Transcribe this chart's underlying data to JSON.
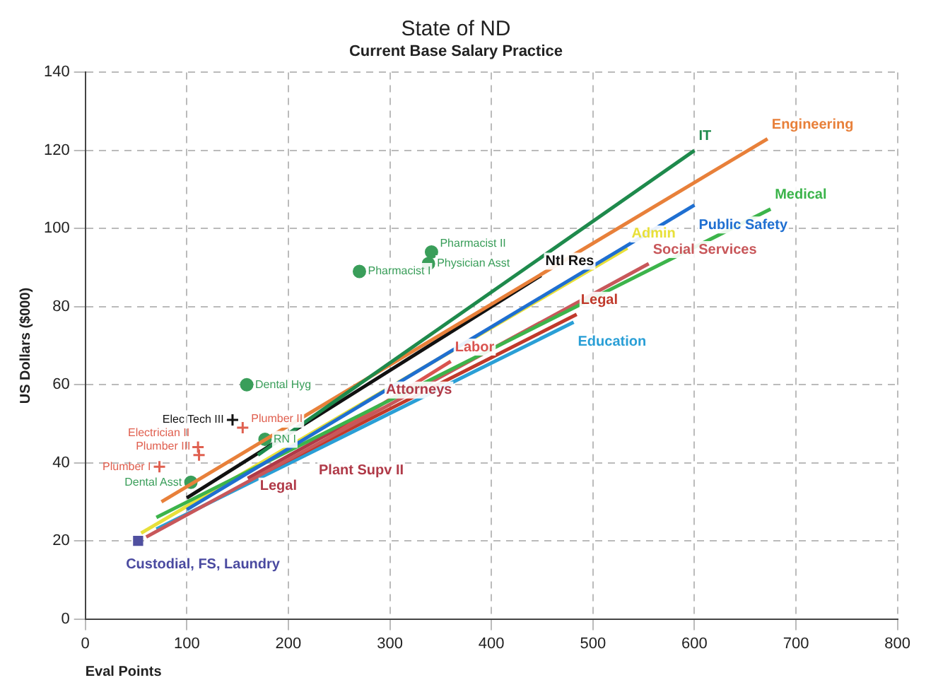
{
  "chart_data": {
    "type": "line",
    "title": "State of ND",
    "subtitle": "Current Base Salary Practice",
    "xlabel": "Eval Points",
    "ylabel": "US Dollars ($000)",
    "xlim": [
      0,
      800
    ],
    "xticks": [
      0,
      100,
      200,
      300,
      400,
      500,
      600,
      700,
      800
    ],
    "ylim": [
      0,
      140
    ],
    "yticks": [
      0,
      20,
      40,
      60,
      80,
      100,
      120,
      140
    ],
    "grid": true,
    "legend": false,
    "line_style": "solid",
    "series": [
      {
        "name": "IT",
        "color": "#1e8a4c",
        "x": [
          170,
          600
        ],
        "values": [
          42,
          120
        ]
      },
      {
        "name": "Engineering",
        "color": "#e8803a",
        "x": [
          75,
          672
        ],
        "values": [
          30,
          123
        ]
      },
      {
        "name": "Public Safety",
        "color": "#1f6fd1",
        "x": [
          100,
          600
        ],
        "values": [
          28,
          106
        ]
      },
      {
        "name": "Medical",
        "color": "#3cb44b",
        "x": [
          70,
          675
        ],
        "values": [
          26,
          105
        ]
      },
      {
        "name": "Admin",
        "color": "#e8e03a",
        "x": [
          55,
          534
        ],
        "values": [
          22,
          95
        ]
      },
      {
        "name": "Social Services",
        "color": "#c8575a",
        "x": [
          60,
          555
        ],
        "values": [
          21,
          91
        ]
      },
      {
        "name": "Ntl Res",
        "color": "#111111",
        "x": [
          100,
          449
        ],
        "values": [
          31,
          88
        ]
      },
      {
        "name": "Legal",
        "color": "#c0392b",
        "x": [
          180,
          484
        ],
        "values": [
          38,
          78
        ]
      },
      {
        "name": "Education",
        "color": "#2a9fd6",
        "x": [
          70,
          481
        ],
        "values": [
          23,
          76
        ]
      },
      {
        "name": "Labor",
        "color": "#d9534f",
        "x": [
          200,
          360
        ],
        "values": [
          40,
          66
        ]
      },
      {
        "name": "Attorneys",
        "color": "#b03a48",
        "x": [
          160,
          292
        ],
        "values": [
          36,
          55
        ]
      },
      {
        "name": "Pharmacist II",
        "type": "scatter",
        "marker": "circle",
        "color": "#3a9e5a",
        "x": [
          341
        ],
        "values": [
          94
        ]
      },
      {
        "name": "Physician Asst",
        "type": "scatter",
        "marker": "circle",
        "color": "#3a9e5a",
        "x": [
          338
        ],
        "values": [
          91
        ]
      },
      {
        "name": "Pharmacist I",
        "type": "scatter",
        "marker": "circle",
        "color": "#3a9e5a",
        "x": [
          270
        ],
        "values": [
          89
        ]
      },
      {
        "name": "Dental Hyg",
        "type": "scatter",
        "marker": "circle",
        "color": "#3a9e5a",
        "x": [
          159
        ],
        "values": [
          60
        ]
      },
      {
        "name": "RN I",
        "type": "scatter",
        "marker": "circle",
        "color": "#3a9e5a",
        "x": [
          177
        ],
        "values": [
          46
        ]
      },
      {
        "name": "Dental Asst",
        "type": "scatter",
        "marker": "circle",
        "color": "#3a9e5a",
        "x": [
          104
        ],
        "values": [
          35
        ]
      },
      {
        "name": "Elec Tech III",
        "type": "scatter",
        "marker": "cross",
        "color": "#111111",
        "x": [
          145
        ],
        "values": [
          51
        ]
      },
      {
        "name": "Plumber II",
        "type": "scatter",
        "marker": "cross",
        "color": "#e06050",
        "x": [
          155
        ],
        "values": [
          49
        ]
      },
      {
        "name": "Electrician II",
        "type": "scatter",
        "marker": "cross",
        "color": "#e06050",
        "x": [
          111
        ],
        "values": [
          44
        ]
      },
      {
        "name": "Plumber III",
        "type": "scatter",
        "marker": "cross",
        "color": "#e06050",
        "x": [
          112
        ],
        "values": [
          42
        ]
      },
      {
        "name": "Plumber I",
        "type": "scatter",
        "marker": "cross",
        "color": "#e06050",
        "x": [
          73
        ],
        "values": [
          39
        ]
      },
      {
        "type": "scatter",
        "marker": "square",
        "color": "#5050a0",
        "x": [
          52
        ],
        "values": [
          20
        ]
      }
    ],
    "annotations": [
      "Plant Supv II",
      "Legal",
      "Custodial, FS, Laundry"
    ]
  }
}
